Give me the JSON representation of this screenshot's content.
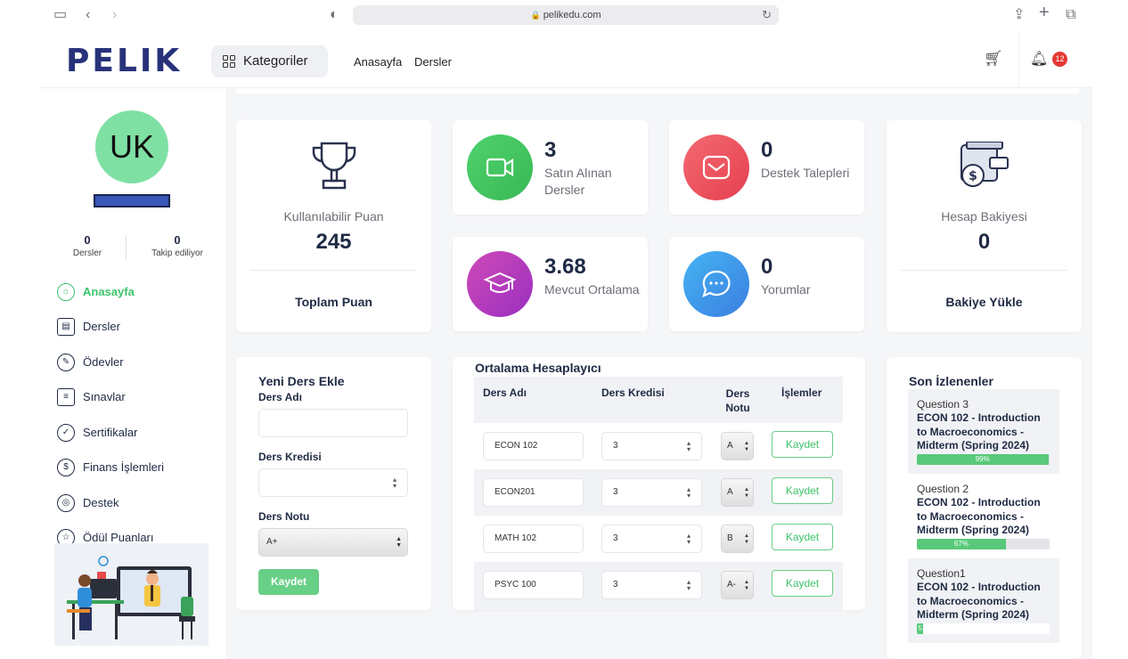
{
  "browser": {
    "url": "pelikedu.com"
  },
  "header": {
    "logo": "PELIK",
    "categories_label": "Kategoriler",
    "nav": [
      "Anasayfa",
      "Dersler"
    ],
    "notification_count": "12"
  },
  "profile": {
    "initials": "UK",
    "stats": [
      {
        "value": "0",
        "label": "Dersler"
      },
      {
        "value": "0",
        "label": "Takip ediliyor"
      }
    ]
  },
  "sidebar": {
    "items": [
      {
        "label": "Anasayfa",
        "icon": "home-icon",
        "active": true
      },
      {
        "label": "Dersler",
        "icon": "courses-icon",
        "active": false
      },
      {
        "label": "Ödevler",
        "icon": "pen-icon",
        "active": false
      },
      {
        "label": "Sınavlar",
        "icon": "exam-icon",
        "active": false
      },
      {
        "label": "Sertifikalar",
        "icon": "certificate-icon",
        "active": false
      },
      {
        "label": "Finans İşlemleri",
        "icon": "money-bag-icon",
        "active": false
      },
      {
        "label": "Destek",
        "icon": "lifebuoy-icon",
        "active": false
      },
      {
        "label": "Ödül Puanları",
        "icon": "award-icon",
        "active": false
      }
    ]
  },
  "points_card": {
    "label": "Kullanılabilir Puan",
    "value": "245",
    "footer": "Toplam Puan"
  },
  "stat_cards": [
    {
      "value": "3",
      "label": "Satın Alınan Dersler",
      "icon": "video-camera-icon",
      "color": "#4fd16c"
    },
    {
      "value": "0",
      "label": "Destek Talepleri",
      "icon": "envelope-icon",
      "color": "#ef5a6a"
    },
    {
      "value": "3.68",
      "label": "Mevcut Ortalama",
      "icon": "graduation-cap-icon",
      "color": "#b43ab8"
    },
    {
      "value": "0",
      "label": "Yorumlar",
      "icon": "chat-bubble-icon",
      "color": "#3f9ff0"
    }
  ],
  "balance_card": {
    "label": "Hesap Bakiyesi",
    "value": "0",
    "footer": "Bakiye Yükle"
  },
  "new_course_form": {
    "title": "Yeni Ders Ekle",
    "name_label": "Ders Adı",
    "credit_label": "Ders Kredisi",
    "grade_label": "Ders Notu",
    "grade_value": "A+",
    "save_label": "Kaydet"
  },
  "gpa_calculator": {
    "title": "Ortalama Hesaplayıcı",
    "columns": [
      "Ders Adı",
      "Ders Kredisi",
      "Ders Notu",
      "İşlemler"
    ],
    "rows": [
      {
        "course": "ECON 102",
        "credit": "3",
        "grade": "A",
        "action": "Kaydet"
      },
      {
        "course": "ECON201",
        "credit": "3",
        "grade": "A",
        "action": "Kaydet"
      },
      {
        "course": "MATH 102",
        "credit": "3",
        "grade": "B",
        "action": "Kaydet"
      },
      {
        "course": "PSYC 100",
        "credit": "3",
        "grade": "A-",
        "action": "Kaydet"
      }
    ]
  },
  "recent": {
    "title": "Son İzlenenler",
    "items": [
      {
        "question": "Question 3",
        "title": "ECON 102 - Introduction to Macroeconomics - Midterm (Spring 2024)",
        "progress": 99,
        "progress_label": "99%"
      },
      {
        "question": "Question 2",
        "title": "ECON 102 - Introduction to Macroeconomics - Midterm (Spring 2024)",
        "progress": 67,
        "progress_label": "67%"
      },
      {
        "question": "Question1",
        "title": "ECON 102 - Introduction to Macroeconomics - Midterm (Spring 2024)",
        "progress": 5,
        "progress_label": "5"
      }
    ]
  }
}
